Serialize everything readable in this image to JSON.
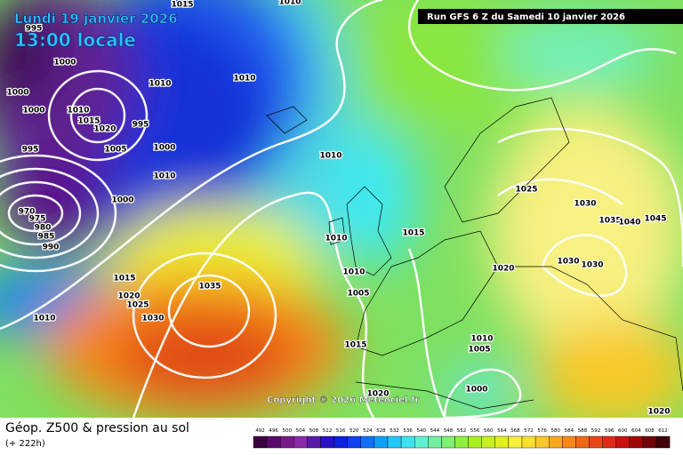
{
  "header": {
    "date": "Lundi 19 janvier 2026",
    "time": "13:00 locale",
    "run": "Run GFS 6 Z du Samedi 10 janvier 2026"
  },
  "copyright": "Copyright © 2026 Meteociel.fr",
  "footer": {
    "title": "Géop. Z500 & pression au sol",
    "lead": "(+ 222h)"
  },
  "isobar_labels": [
    "1015",
    "1000",
    "1000",
    "1000",
    "1010",
    "1010",
    "1010",
    "1015",
    "1020",
    "995",
    "995",
    "1005",
    "1000",
    "1010",
    "1000",
    "970",
    "975",
    "980",
    "985",
    "990",
    "995",
    "1010",
    "1010",
    "1015",
    "1010",
    "1005",
    "1015",
    "1020",
    "1025",
    "1030",
    "1035",
    "1010",
    "1015",
    "1020",
    "1025",
    "1030",
    "1035",
    "1040",
    "1045",
    "1020",
    "1030",
    "1030",
    "1010",
    "1005",
    "1000",
    "1020",
    "1010"
  ],
  "legend": {
    "values": [
      "492",
      "496",
      "500",
      "504",
      "508",
      "512",
      "516",
      "520",
      "524",
      "528",
      "532",
      "536",
      "540",
      "544",
      "548",
      "552",
      "556",
      "560",
      "564",
      "568",
      "572",
      "576",
      "580",
      "584",
      "588",
      "592",
      "596",
      "600",
      "604",
      "608",
      "612"
    ],
    "colors": [
      "#3a0040",
      "#5a0a6a",
      "#7a1a8a",
      "#8a2aa8",
      "#5a1aa8",
      "#2a10c8",
      "#1020e0",
      "#1040f0",
      "#1070f8",
      "#10a0f8",
      "#20c8f8",
      "#40e0f0",
      "#60f0d0",
      "#70f0a0",
      "#80f070",
      "#90f040",
      "#a8f020",
      "#c8f020",
      "#e0f020",
      "#f8f040",
      "#f8e030",
      "#f8c828",
      "#f8a820",
      "#f88818",
      "#f06818",
      "#e84818",
      "#e02818",
      "#c81010",
      "#a00808",
      "#700408",
      "#400004"
    ]
  }
}
